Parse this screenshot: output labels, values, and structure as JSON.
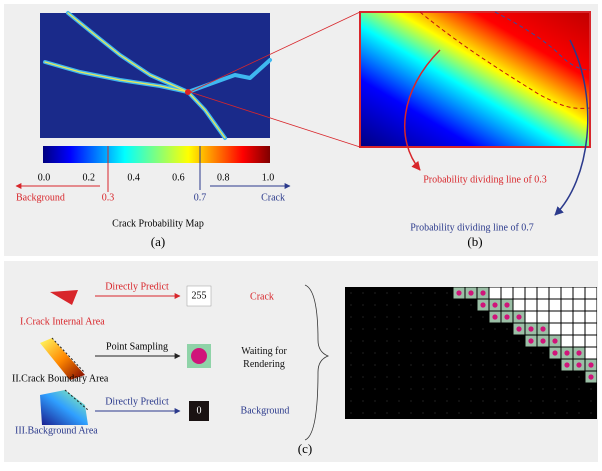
{
  "panel_a": {
    "colorbar_ticks": [
      "0.0",
      "0.2",
      "0.4",
      "0.6",
      "0.8",
      "1.0"
    ],
    "threshold_low": "0.3",
    "threshold_high": "0.7",
    "left_label": "Background",
    "right_label": "Crack",
    "caption": "Crack Probability Map",
    "tag": "(a)"
  },
  "panel_b": {
    "line_low": "Probability dividing line of 0.3",
    "line_high": "Probability dividing line of 0.7",
    "tag": "(b)"
  },
  "panel_c": {
    "rows": [
      {
        "action": "Directly Predict",
        "output": "255",
        "result": "Crack",
        "area": "I.Crack Internal Area"
      },
      {
        "action": "Point Sampling",
        "result": "Waiting for Rendering",
        "area": "II.Crack Boundary Area"
      },
      {
        "action": "Directly Predict",
        "output": "0",
        "result": "Background",
        "area": "III.Background Area"
      }
    ],
    "tag": "(c)"
  }
}
